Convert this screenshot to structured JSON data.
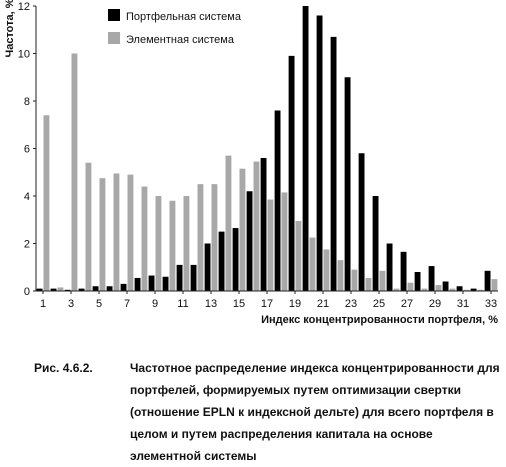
{
  "chart_data": {
    "type": "bar",
    "x": [
      1,
      2,
      3,
      4,
      5,
      6,
      7,
      8,
      9,
      10,
      11,
      12,
      13,
      14,
      15,
      16,
      17,
      18,
      19,
      20,
      21,
      22,
      23,
      24,
      25,
      26,
      27,
      28,
      29,
      30,
      31,
      32,
      33
    ],
    "x_ticks": [
      "1",
      "3",
      "5",
      "7",
      "9",
      "11",
      "13",
      "15",
      "17",
      "19",
      "21",
      "23",
      "25",
      "27",
      "29",
      "31",
      "33"
    ],
    "y_ticks": [
      "0",
      "2",
      "4",
      "6",
      "8",
      "10",
      "12"
    ],
    "ylim": [
      0,
      12
    ],
    "ylabel": "Частота, %",
    "xlabel": "Индекс концентрированности портфеля, %",
    "legend_position": "top-left",
    "series": [
      {
        "name": "Портфельная система",
        "color": "#000000",
        "values": [
          0.1,
          0.1,
          0.05,
          0.1,
          0.2,
          0.2,
          0.3,
          0.55,
          0.65,
          0.6,
          1.1,
          1.1,
          2.0,
          2.5,
          2.65,
          4.2,
          5.6,
          7.6,
          9.9,
          12.0,
          11.6,
          10.7,
          9.0,
          5.8,
          4.0,
          2.0,
          1.65,
          0.8,
          1.05,
          0.4,
          0.2,
          0.1,
          0.85
        ]
      },
      {
        "name": "Элементная система",
        "color": "#a8a8a8",
        "values": [
          7.4,
          0.15,
          10.0,
          5.4,
          4.75,
          4.95,
          4.9,
          4.4,
          4.0,
          3.8,
          4.0,
          4.5,
          4.5,
          5.7,
          5.15,
          5.45,
          3.85,
          4.15,
          2.95,
          2.25,
          1.75,
          1.3,
          0.9,
          0.55,
          0.85,
          0.1,
          0.35,
          0.1,
          0.25,
          0.1,
          0.05,
          0.05,
          0.5
        ]
      }
    ]
  },
  "caption": {
    "label": "Рис. 4.6.2.",
    "text": "Частотное распределение индекса концентрированности для портфелей, формируемых путем оптимизации свертки (отношение EPLN к индексной дельте) для всего портфеля в целом и путем распределения капитала на основе элементной системы"
  }
}
